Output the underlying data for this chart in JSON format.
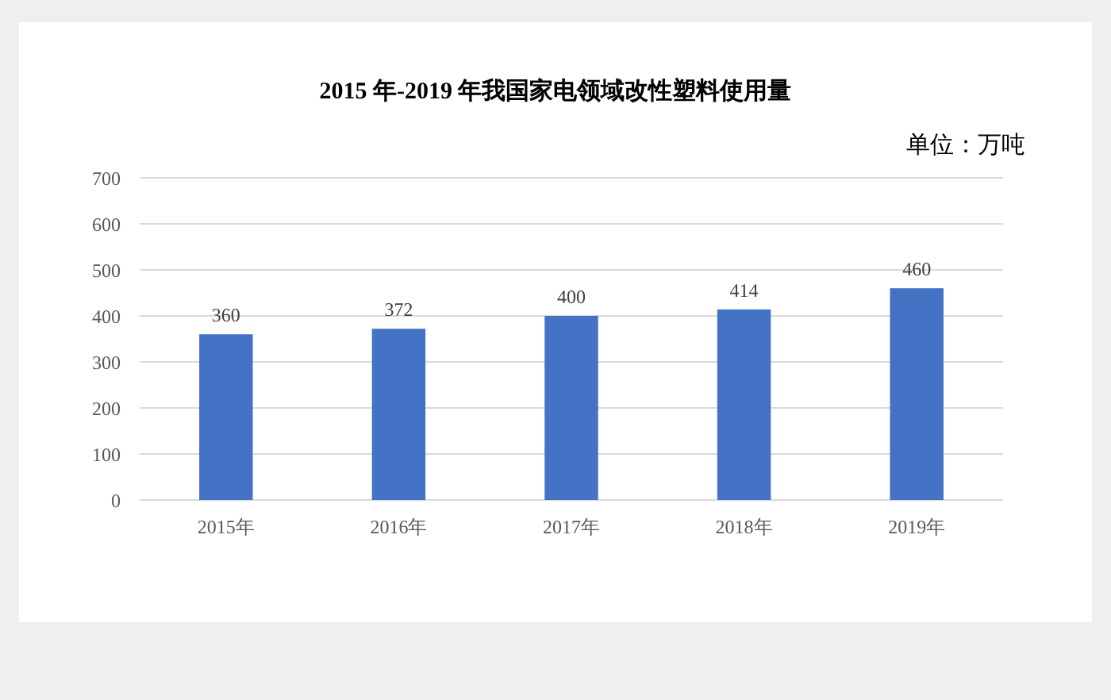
{
  "chart_data": {
    "type": "bar",
    "title": "2015 年-2019 年我国家电领域改性塑料使用量",
    "annotations": [
      "单位：万吨"
    ],
    "categories": [
      "2015年",
      "2016年",
      "2017年",
      "2018年",
      "2019年"
    ],
    "values": [
      360,
      372,
      400,
      414,
      460
    ],
    "color": "#4472c4",
    "ylim": [
      0,
      700
    ],
    "yticks": [
      0,
      100,
      200,
      300,
      400,
      500,
      600,
      700
    ],
    "grid": "y",
    "data_labels": true
  }
}
